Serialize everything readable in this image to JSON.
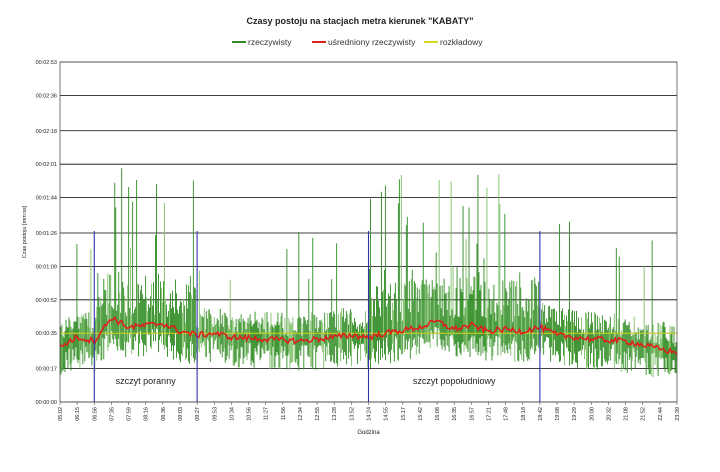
{
  "chart_data": {
    "type": "line",
    "title": "Czasy postoju na stacjach metra kierunek \"KABATY\"",
    "xlabel": "Godzina",
    "ylabel": "Czas postoju [mm:ss]",
    "y_ticks": [
      "00:00:00",
      "00:00:17",
      "00:00:35",
      "00:00:52",
      "00:01:09",
      "00:01:26",
      "00:01:44",
      "00:02:01",
      "00:02:18",
      "00:02:36",
      "00:02:53"
    ],
    "y_tick_seconds": [
      0,
      17,
      35,
      52,
      69,
      86,
      104,
      121,
      138,
      156,
      173
    ],
    "ylim": [
      0,
      173
    ],
    "x_ticks": [
      "05:02",
      "06:15",
      "06:56",
      "07:35",
      "07:59",
      "08:16",
      "08:36",
      "09:03",
      "09:27",
      "09:53",
      "10:34",
      "10:56",
      "11:27",
      "11:56",
      "12:34",
      "12:55",
      "13:28",
      "13:52",
      "14:24",
      "14:55",
      "15:17",
      "15:42",
      "16:08",
      "16:35",
      "16:57",
      "17:21",
      "17:48",
      "18:18",
      "18:42",
      "19:08",
      "19:29",
      "20:00",
      "20:32",
      "21:08",
      "21:52",
      "22:44",
      "23:39"
    ],
    "series": [
      {
        "name": "rzeczywisty",
        "color": "#2e8b22"
      },
      {
        "name": "uśredniony rzeczywisty",
        "color": "#e0201a"
      },
      {
        "name": "rozkładowy",
        "color": "#d8d820"
      }
    ],
    "rozkladowy_value_seconds": 35,
    "averaged_profile": {
      "x": [
        "05:02",
        "06:15",
        "06:56",
        "07:35",
        "07:59",
        "08:16",
        "08:36",
        "09:03",
        "09:27",
        "09:53",
        "10:34",
        "11:27",
        "12:34",
        "13:28",
        "13:52",
        "14:24",
        "14:55",
        "15:42",
        "16:08",
        "16:35",
        "16:57",
        "17:21",
        "17:48",
        "18:18",
        "18:42",
        "19:08",
        "20:00",
        "21:08",
        "22:44",
        "23:39"
      ],
      "y": [
        28,
        33,
        31,
        43,
        38,
        39,
        40,
        36,
        34,
        35,
        33,
        32,
        31,
        33,
        34,
        33,
        35,
        38,
        41,
        37,
        39,
        36,
        37,
        36,
        38,
        34,
        32,
        31,
        27,
        25
      ]
    },
    "peaks": [
      {
        "label": "szczyt poranny",
        "start": "06:56",
        "end": "09:27"
      },
      {
        "label": "szczyt popołudniowy",
        "start": "14:24",
        "end": "18:42"
      }
    ],
    "grid": true
  }
}
